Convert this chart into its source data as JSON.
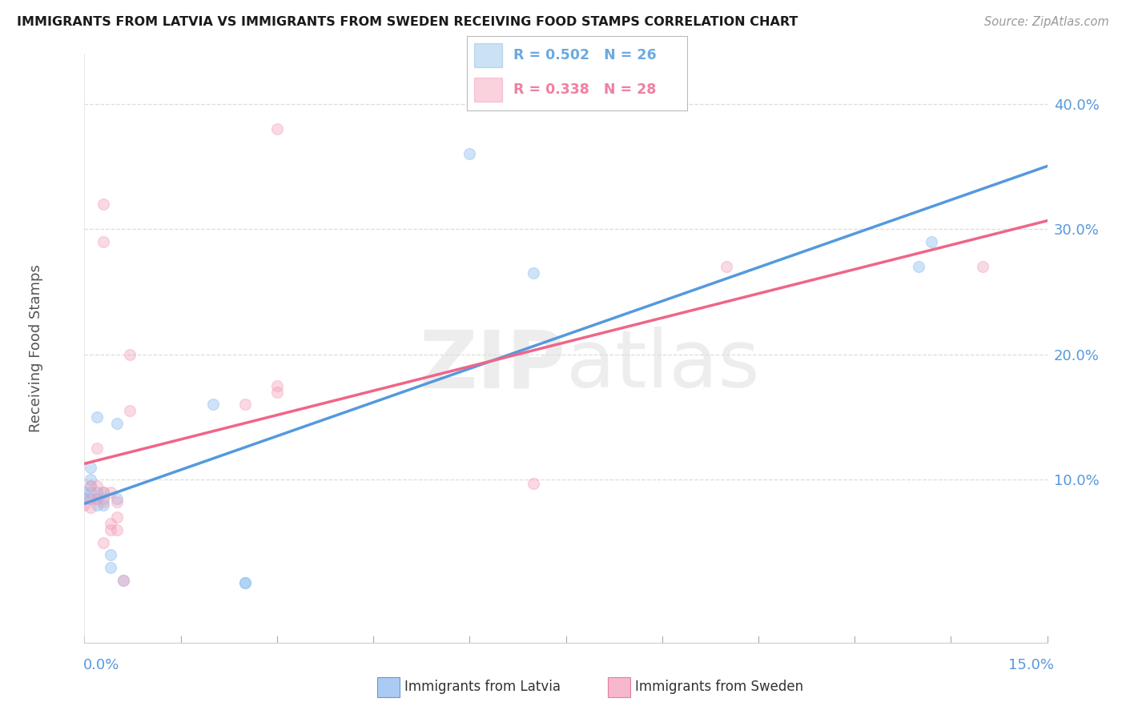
{
  "title": "IMMIGRANTS FROM LATVIA VS IMMIGRANTS FROM SWEDEN RECEIVING FOOD STAMPS CORRELATION CHART",
  "source": "Source: ZipAtlas.com",
  "ylabel": "Receiving Food Stamps",
  "xlim": [
    0.0,
    0.15
  ],
  "ylim": [
    -0.03,
    0.44
  ],
  "right_yticks": [
    0.1,
    0.2,
    0.3,
    0.4
  ],
  "right_yticklabels": [
    "10.0%",
    "20.0%",
    "30.0%",
    "40.0%"
  ],
  "legend_entries": [
    {
      "label": "R = 0.502   N = 26",
      "color": "#6aaae0"
    },
    {
      "label": "R = 0.338   N = 28",
      "color": "#f080a0"
    }
  ],
  "bottom_legend": [
    {
      "label": "Immigrants from Latvia",
      "facecolor": "#aaccf4",
      "edgecolor": "#6699cc"
    },
    {
      "label": "Immigrants from Sweden",
      "facecolor": "#f8b8cc",
      "edgecolor": "#e080a0"
    }
  ],
  "latvia_x": [
    0.0,
    0.0,
    0.001,
    0.001,
    0.001,
    0.001,
    0.001,
    0.002,
    0.002,
    0.002,
    0.002,
    0.003,
    0.003,
    0.003,
    0.004,
    0.004,
    0.005,
    0.005,
    0.006,
    0.02,
    0.025,
    0.025,
    0.07,
    0.13,
    0.132,
    0.06
  ],
  "latvia_y": [
    0.085,
    0.09,
    0.085,
    0.09,
    0.095,
    0.1,
    0.11,
    0.08,
    0.085,
    0.09,
    0.15,
    0.08,
    0.085,
    0.09,
    0.03,
    0.04,
    0.085,
    0.145,
    0.02,
    0.16,
    0.018,
    0.018,
    0.265,
    0.27,
    0.29,
    0.36
  ],
  "sweden_x": [
    0.0,
    0.001,
    0.001,
    0.001,
    0.002,
    0.002,
    0.002,
    0.003,
    0.003,
    0.003,
    0.004,
    0.004,
    0.004,
    0.005,
    0.005,
    0.005,
    0.006,
    0.007,
    0.007,
    0.025,
    0.03,
    0.03,
    0.07,
    0.03,
    0.1,
    0.14,
    0.003,
    0.003
  ],
  "sweden_y": [
    0.08,
    0.078,
    0.085,
    0.095,
    0.085,
    0.095,
    0.125,
    0.05,
    0.082,
    0.09,
    0.06,
    0.065,
    0.09,
    0.06,
    0.07,
    0.082,
    0.02,
    0.155,
    0.2,
    0.16,
    0.17,
    0.175,
    0.097,
    0.38,
    0.27,
    0.27,
    0.29,
    0.32
  ],
  "latvia_color_scatter": "#88bbee",
  "sweden_color_scatter": "#f4a0b8",
  "latvia_color_line": "#5599dd",
  "sweden_color_line": "#ee6688",
  "background_color": "#ffffff",
  "grid_color": "#dddddd",
  "title_color": "#1a1a1a",
  "axis_label_color": "#5599dd",
  "marker_size": 100
}
